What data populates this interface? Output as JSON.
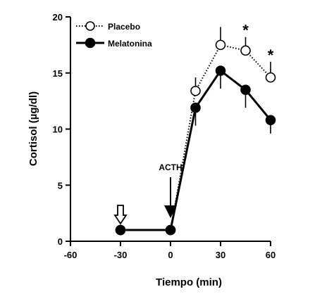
{
  "chart_data": {
    "type": "line",
    "xlabel": "Tiempo (min)",
    "ylabel": "Cortisol (µg/dl)",
    "xlim": [
      -60,
      60
    ],
    "ylim": [
      0,
      20
    ],
    "xticks": [
      -60,
      -30,
      0,
      30,
      60
    ],
    "yticks": [
      0,
      5,
      10,
      15,
      20
    ],
    "grid": false,
    "legend_position": "top-left",
    "series": [
      {
        "name": "Placebo",
        "marker": "open-circle",
        "line_style": "dotted",
        "color": "#000000",
        "x": [
          -30,
          0,
          15,
          30,
          45,
          60
        ],
        "y": [
          1.0,
          1.0,
          13.4,
          17.5,
          17.0,
          14.6
        ],
        "error_up": [
          0,
          0,
          1.2,
          1.6,
          1.2,
          1.4
        ]
      },
      {
        "name": "Melatonina",
        "marker": "filled-circle",
        "line_style": "solid",
        "color": "#000000",
        "x": [
          -30,
          0,
          15,
          30,
          45,
          60
        ],
        "y": [
          1.0,
          1.0,
          11.9,
          15.2,
          13.5,
          10.8
        ],
        "error_down": [
          0,
          0,
          1.6,
          1.6,
          1.6,
          1.2
        ]
      }
    ],
    "annotations": [
      {
        "text": "ACTH",
        "x": 0,
        "type": "filled-arrow-down"
      },
      {
        "text": "",
        "x": -30,
        "type": "open-arrow-down"
      },
      {
        "text": "*",
        "x": 45,
        "type": "significance"
      },
      {
        "text": "*",
        "x": 60,
        "type": "significance"
      }
    ]
  }
}
